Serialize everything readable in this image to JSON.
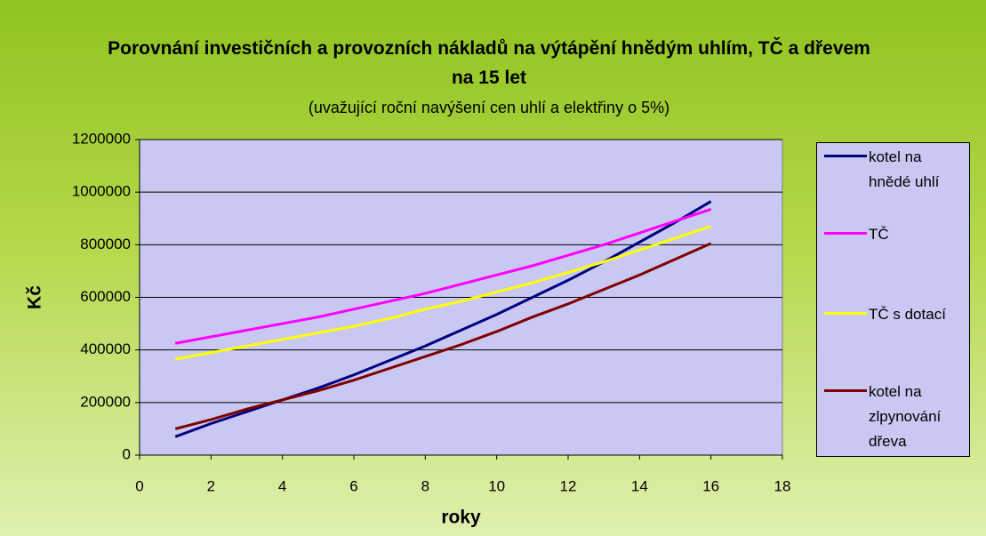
{
  "chart_data": {
    "type": "line",
    "title": "Porovnání investičních a provozních nákladů na výtápění hnědým uhlím, TČ a dřevem na 15 let",
    "subtitle": "(uvažující roční navýšení cen uhlí a elektřiny o 5%)",
    "x_label": "roky",
    "y_label": "Kč",
    "x": [
      1,
      2,
      3,
      4,
      5,
      6,
      7,
      8,
      9,
      10,
      11,
      12,
      13,
      14,
      15,
      16
    ],
    "series": [
      {
        "name": "kotel na hnědé uhlí",
        "color": "#000080",
        "values": [
          70000,
          120000,
          165000,
          210000,
          255000,
          305000,
          360000,
          415000,
          475000,
          535000,
          600000,
          665000,
          735000,
          810000,
          885000,
          965000
        ]
      },
      {
        "name": "TČ",
        "color": "#ff00ff",
        "values": [
          425000,
          450000,
          475000,
          500000,
          525000,
          555000,
          585000,
          615000,
          650000,
          685000,
          720000,
          760000,
          800000,
          845000,
          890000,
          935000
        ]
      },
      {
        "name": "TČ s dotací",
        "color": "#ffff00",
        "values": [
          365000,
          390000,
          415000,
          440000,
          465000,
          490000,
          520000,
          555000,
          585000,
          620000,
          655000,
          695000,
          735000,
          780000,
          825000,
          870000
        ]
      },
      {
        "name": "kotel na zlpynování dřeva",
        "color": "#800000",
        "values": [
          100000,
          135000,
          175000,
          210000,
          245000,
          285000,
          330000,
          375000,
          420000,
          470000,
          525000,
          575000,
          630000,
          685000,
          745000,
          805000
        ]
      }
    ],
    "xlim": [
      0,
      18
    ],
    "xticks": [
      0,
      2,
      4,
      6,
      8,
      10,
      12,
      14,
      16,
      18
    ],
    "ylim": [
      0,
      1200000
    ],
    "yticks": [
      0,
      200000,
      400000,
      600000,
      800000,
      1000000,
      1200000
    ],
    "grid": true,
    "legend": "right"
  }
}
